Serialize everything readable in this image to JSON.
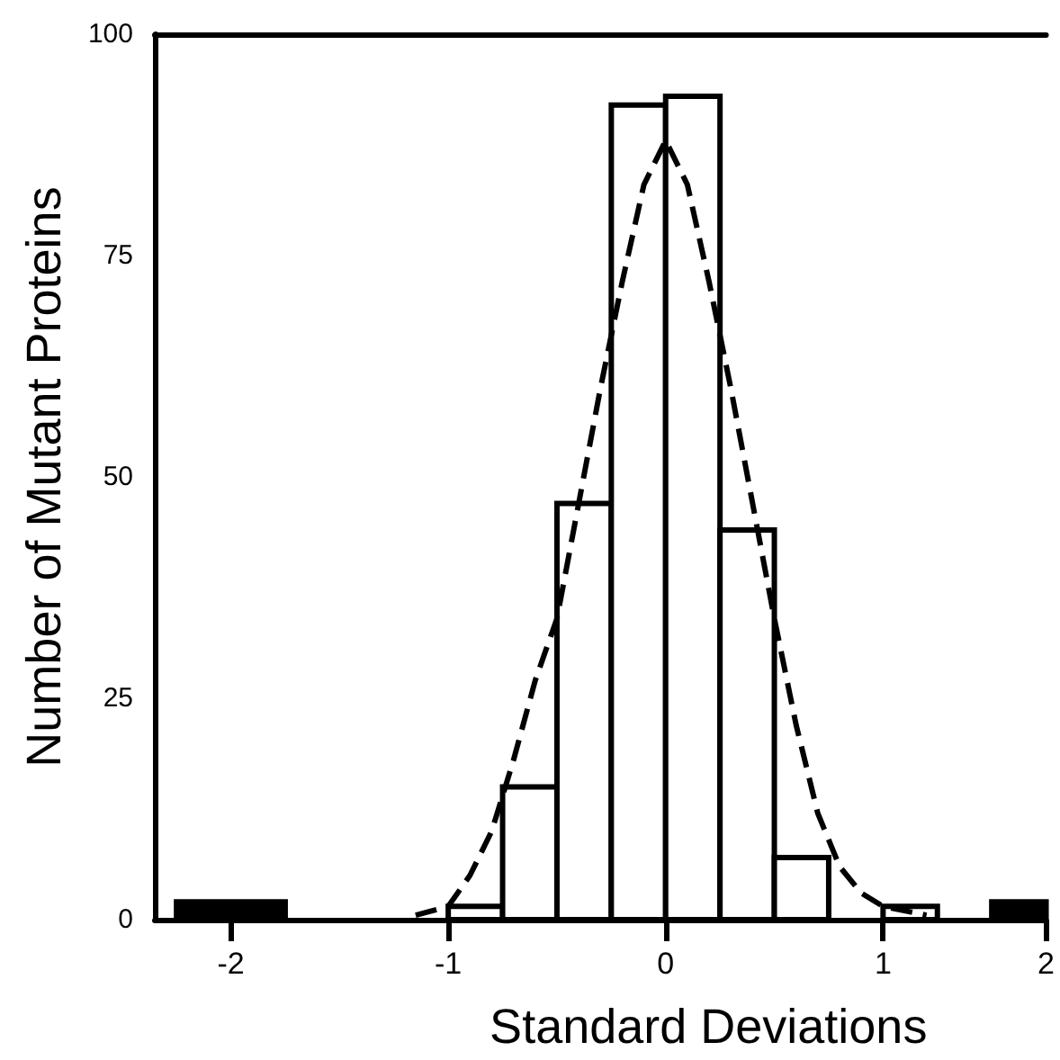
{
  "chart_data": {
    "type": "histogram",
    "xlabel": "Standard Deviations",
    "ylabel": "Number of Mutant Proteins",
    "bins": [
      -2.25,
      -1.75,
      -1,
      -0.75,
      -0.5,
      -0.25,
      0,
      0.25,
      0.5,
      0.75,
      1,
      1.25,
      1.5,
      1.75
    ],
    "values": [
      2,
      0,
      1.5,
      15,
      47,
      92,
      93,
      44,
      7,
      0,
      1.5,
      0,
      2
    ],
    "colors": [
      "#000000",
      "#ffffff",
      "#ffffff",
      "#ffffff",
      "#ffffff",
      "#ffffff",
      "#ffffff",
      "#ffffff",
      "#ffffff",
      "#ffffff",
      "#ffffff",
      "#ffffff",
      "#000000"
    ],
    "series": [
      {
        "type": "line",
        "color": "#000000",
        "line_style": "dashed",
        "marker": "none",
        "x": [
          -1.15,
          -1.0,
          -0.9,
          -0.8,
          -0.7,
          -0.6,
          -0.5,
          -0.4,
          -0.3,
          -0.2,
          -0.1,
          0,
          0.1,
          0.2,
          0.3,
          0.4,
          0.5,
          0.6,
          0.7,
          0.8,
          0.9,
          1.0,
          1.2
        ],
        "values": [
          0.5,
          1.5,
          5,
          10,
          18,
          27,
          34,
          47,
          60,
          72,
          83,
          88,
          83,
          72,
          60,
          47,
          34,
          22,
          12,
          6,
          3,
          1.5,
          0.5
        ]
      }
    ],
    "xlim": [
      -2.35,
      1.75
    ],
    "xticks": [
      -2,
      -1,
      0,
      1,
      {
        "value": 1.75,
        "label": "2"
      }
    ],
    "ylim": [
      0,
      100
    ],
    "yticks": [
      0,
      25,
      50,
      75,
      100
    ]
  }
}
